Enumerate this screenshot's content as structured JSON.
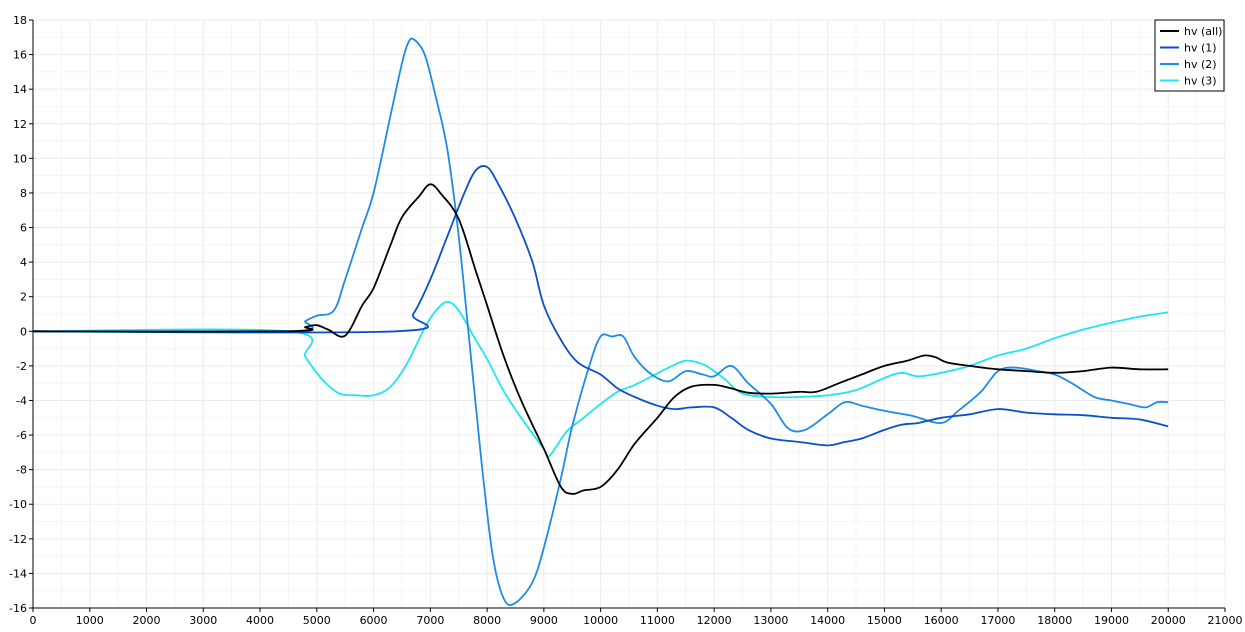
{
  "chart_data": {
    "type": "line",
    "xlim": [
      0,
      21000
    ],
    "ylim": [
      -16,
      18
    ],
    "x_ticks": [
      0,
      1000,
      2000,
      3000,
      4000,
      5000,
      6000,
      7000,
      8000,
      9000,
      10000,
      11000,
      12000,
      13000,
      14000,
      15000,
      16000,
      17000,
      18000,
      19000,
      20000,
      21000
    ],
    "y_ticks": [
      -16,
      -14,
      -12,
      -10,
      -8,
      -6,
      -4,
      -2,
      0,
      2,
      4,
      6,
      8,
      10,
      12,
      14,
      16,
      18
    ],
    "grid": true,
    "legend_position": "top-right",
    "series": [
      {
        "name": "hv (all)",
        "color": "#000000",
        "points": [
          [
            0,
            0
          ],
          [
            4500,
            0
          ],
          [
            4800,
            0.25
          ],
          [
            5000,
            0.35
          ],
          [
            5200,
            0.1
          ],
          [
            5500,
            -0.25
          ],
          [
            5800,
            1.5
          ],
          [
            6000,
            2.5
          ],
          [
            6300,
            5
          ],
          [
            6500,
            6.6
          ],
          [
            6800,
            7.8
          ],
          [
            7000,
            8.5
          ],
          [
            7200,
            7.9
          ],
          [
            7500,
            6.5
          ],
          [
            7800,
            3.5
          ],
          [
            8000,
            1.5
          ],
          [
            8300,
            -1.5
          ],
          [
            8600,
            -4
          ],
          [
            9000,
            -6.8
          ],
          [
            9300,
            -9
          ],
          [
            9500,
            -9.4
          ],
          [
            9700,
            -9.2
          ],
          [
            10000,
            -9
          ],
          [
            10300,
            -8
          ],
          [
            10600,
            -6.5
          ],
          [
            11000,
            -5
          ],
          [
            11300,
            -3.8
          ],
          [
            11600,
            -3.2
          ],
          [
            12000,
            -3.1
          ],
          [
            12300,
            -3.3
          ],
          [
            12600,
            -3.55
          ],
          [
            13000,
            -3.6
          ],
          [
            13500,
            -3.5
          ],
          [
            13800,
            -3.5
          ],
          [
            14200,
            -3.0
          ],
          [
            14600,
            -2.5
          ],
          [
            15000,
            -2
          ],
          [
            15400,
            -1.7
          ],
          [
            15700,
            -1.4
          ],
          [
            15900,
            -1.5
          ],
          [
            16100,
            -1.8
          ],
          [
            16500,
            -2
          ],
          [
            17000,
            -2.2
          ],
          [
            17500,
            -2.3
          ],
          [
            18000,
            -2.4
          ],
          [
            18500,
            -2.3
          ],
          [
            19000,
            -2.1
          ],
          [
            19500,
            -2.2
          ],
          [
            20000,
            -2.2
          ]
        ]
      },
      {
        "name": "hv (1)",
        "color": "#0a50c8",
        "points": [
          [
            0,
            0
          ],
          [
            6400,
            0
          ],
          [
            6700,
            1
          ],
          [
            7000,
            3
          ],
          [
            7300,
            5.5
          ],
          [
            7600,
            8
          ],
          [
            7800,
            9.3
          ],
          [
            8000,
            9.5
          ],
          [
            8200,
            8.5
          ],
          [
            8500,
            6.5
          ],
          [
            8800,
            4
          ],
          [
            9000,
            1.5
          ],
          [
            9300,
            -0.5
          ],
          [
            9600,
            -1.8
          ],
          [
            10000,
            -2.5
          ],
          [
            10300,
            -3.3
          ],
          [
            10600,
            -3.8
          ],
          [
            11000,
            -4.3
          ],
          [
            11300,
            -4.5
          ],
          [
            11600,
            -4.4
          ],
          [
            12000,
            -4.4
          ],
          [
            12300,
            -5
          ],
          [
            12600,
            -5.7
          ],
          [
            13000,
            -6.2
          ],
          [
            13500,
            -6.4
          ],
          [
            14000,
            -6.6
          ],
          [
            14300,
            -6.4
          ],
          [
            14600,
            -6.2
          ],
          [
            15000,
            -5.7
          ],
          [
            15300,
            -5.4
          ],
          [
            15600,
            -5.3
          ],
          [
            16000,
            -5
          ],
          [
            16500,
            -4.8
          ],
          [
            17000,
            -4.5
          ],
          [
            17500,
            -4.7
          ],
          [
            18000,
            -4.8
          ],
          [
            18500,
            -4.85
          ],
          [
            19000,
            -5
          ],
          [
            19500,
            -5.1
          ],
          [
            20000,
            -5.5
          ]
        ]
      },
      {
        "name": "hv (2)",
        "color": "#1e8ce6",
        "points": [
          [
            0,
            0
          ],
          [
            4500,
            0
          ],
          [
            4800,
            0.6
          ],
          [
            5000,
            0.9
          ],
          [
            5300,
            1.2
          ],
          [
            5500,
            3
          ],
          [
            5800,
            6
          ],
          [
            6000,
            8
          ],
          [
            6300,
            12.5
          ],
          [
            6500,
            15.5
          ],
          [
            6600,
            16.6
          ],
          [
            6700,
            16.9
          ],
          [
            6900,
            16
          ],
          [
            7100,
            13.5
          ],
          [
            7300,
            10.5
          ],
          [
            7500,
            5.5
          ],
          [
            7700,
            -1
          ],
          [
            7900,
            -7.5
          ],
          [
            8100,
            -13
          ],
          [
            8300,
            -15.5
          ],
          [
            8500,
            -15.7
          ],
          [
            8800,
            -14.5
          ],
          [
            9000,
            -12.5
          ],
          [
            9300,
            -8.5
          ],
          [
            9500,
            -5.5
          ],
          [
            9800,
            -2
          ],
          [
            10000,
            -0.3
          ],
          [
            10200,
            -0.3
          ],
          [
            10400,
            -0.3
          ],
          [
            10600,
            -1.5
          ],
          [
            10900,
            -2.5
          ],
          [
            11200,
            -2.9
          ],
          [
            11500,
            -2.3
          ],
          [
            11800,
            -2.5
          ],
          [
            12000,
            -2.6
          ],
          [
            12300,
            -2
          ],
          [
            12600,
            -3
          ],
          [
            13000,
            -4.2
          ],
          [
            13300,
            -5.6
          ],
          [
            13600,
            -5.7
          ],
          [
            14000,
            -4.8
          ],
          [
            14300,
            -4.1
          ],
          [
            14600,
            -4.3
          ],
          [
            15000,
            -4.6
          ],
          [
            15500,
            -4.9
          ],
          [
            16000,
            -5.3
          ],
          [
            16300,
            -4.6
          ],
          [
            16700,
            -3.5
          ],
          [
            17000,
            -2.3
          ],
          [
            17300,
            -2.1
          ],
          [
            17700,
            -2.3
          ],
          [
            18000,
            -2.5
          ],
          [
            18300,
            -3
          ],
          [
            18700,
            -3.8
          ],
          [
            19000,
            -4
          ],
          [
            19300,
            -4.2
          ],
          [
            19600,
            -4.4
          ],
          [
            19800,
            -4.1
          ],
          [
            20000,
            -4.1
          ]
        ]
      },
      {
        "name": "hv (3)",
        "color": "#1ee6f0",
        "points": [
          [
            0,
            0
          ],
          [
            4500,
            0
          ],
          [
            4800,
            -1.5
          ],
          [
            5100,
            -2.8
          ],
          [
            5400,
            -3.6
          ],
          [
            5700,
            -3.7
          ],
          [
            6000,
            -3.7
          ],
          [
            6300,
            -3.2
          ],
          [
            6600,
            -1.8
          ],
          [
            6900,
            0.2
          ],
          [
            7100,
            1.2
          ],
          [
            7300,
            1.7
          ],
          [
            7500,
            1.2
          ],
          [
            7800,
            -0.5
          ],
          [
            8000,
            -1.6
          ],
          [
            8300,
            -3.5
          ],
          [
            8600,
            -5
          ],
          [
            9000,
            -6.8
          ],
          [
            9100,
            -7.2
          ],
          [
            9400,
            -5.8
          ],
          [
            9700,
            -5
          ],
          [
            10000,
            -4.2
          ],
          [
            10300,
            -3.5
          ],
          [
            10600,
            -3.1
          ],
          [
            10900,
            -2.6
          ],
          [
            11200,
            -2.1
          ],
          [
            11500,
            -1.7
          ],
          [
            11800,
            -1.9
          ],
          [
            12000,
            -2.3
          ],
          [
            12200,
            -2.8
          ],
          [
            12500,
            -3.6
          ],
          [
            13000,
            -3.8
          ],
          [
            13500,
            -3.8
          ],
          [
            14000,
            -3.7
          ],
          [
            14500,
            -3.4
          ],
          [
            15000,
            -2.7
          ],
          [
            15300,
            -2.4
          ],
          [
            15600,
            -2.6
          ],
          [
            16000,
            -2.4
          ],
          [
            16500,
            -2
          ],
          [
            17000,
            -1.4
          ],
          [
            17500,
            -1
          ],
          [
            18000,
            -0.4
          ],
          [
            18500,
            0.1
          ],
          [
            19000,
            0.5
          ],
          [
            19500,
            0.85
          ],
          [
            20000,
            1.1
          ]
        ]
      }
    ]
  }
}
